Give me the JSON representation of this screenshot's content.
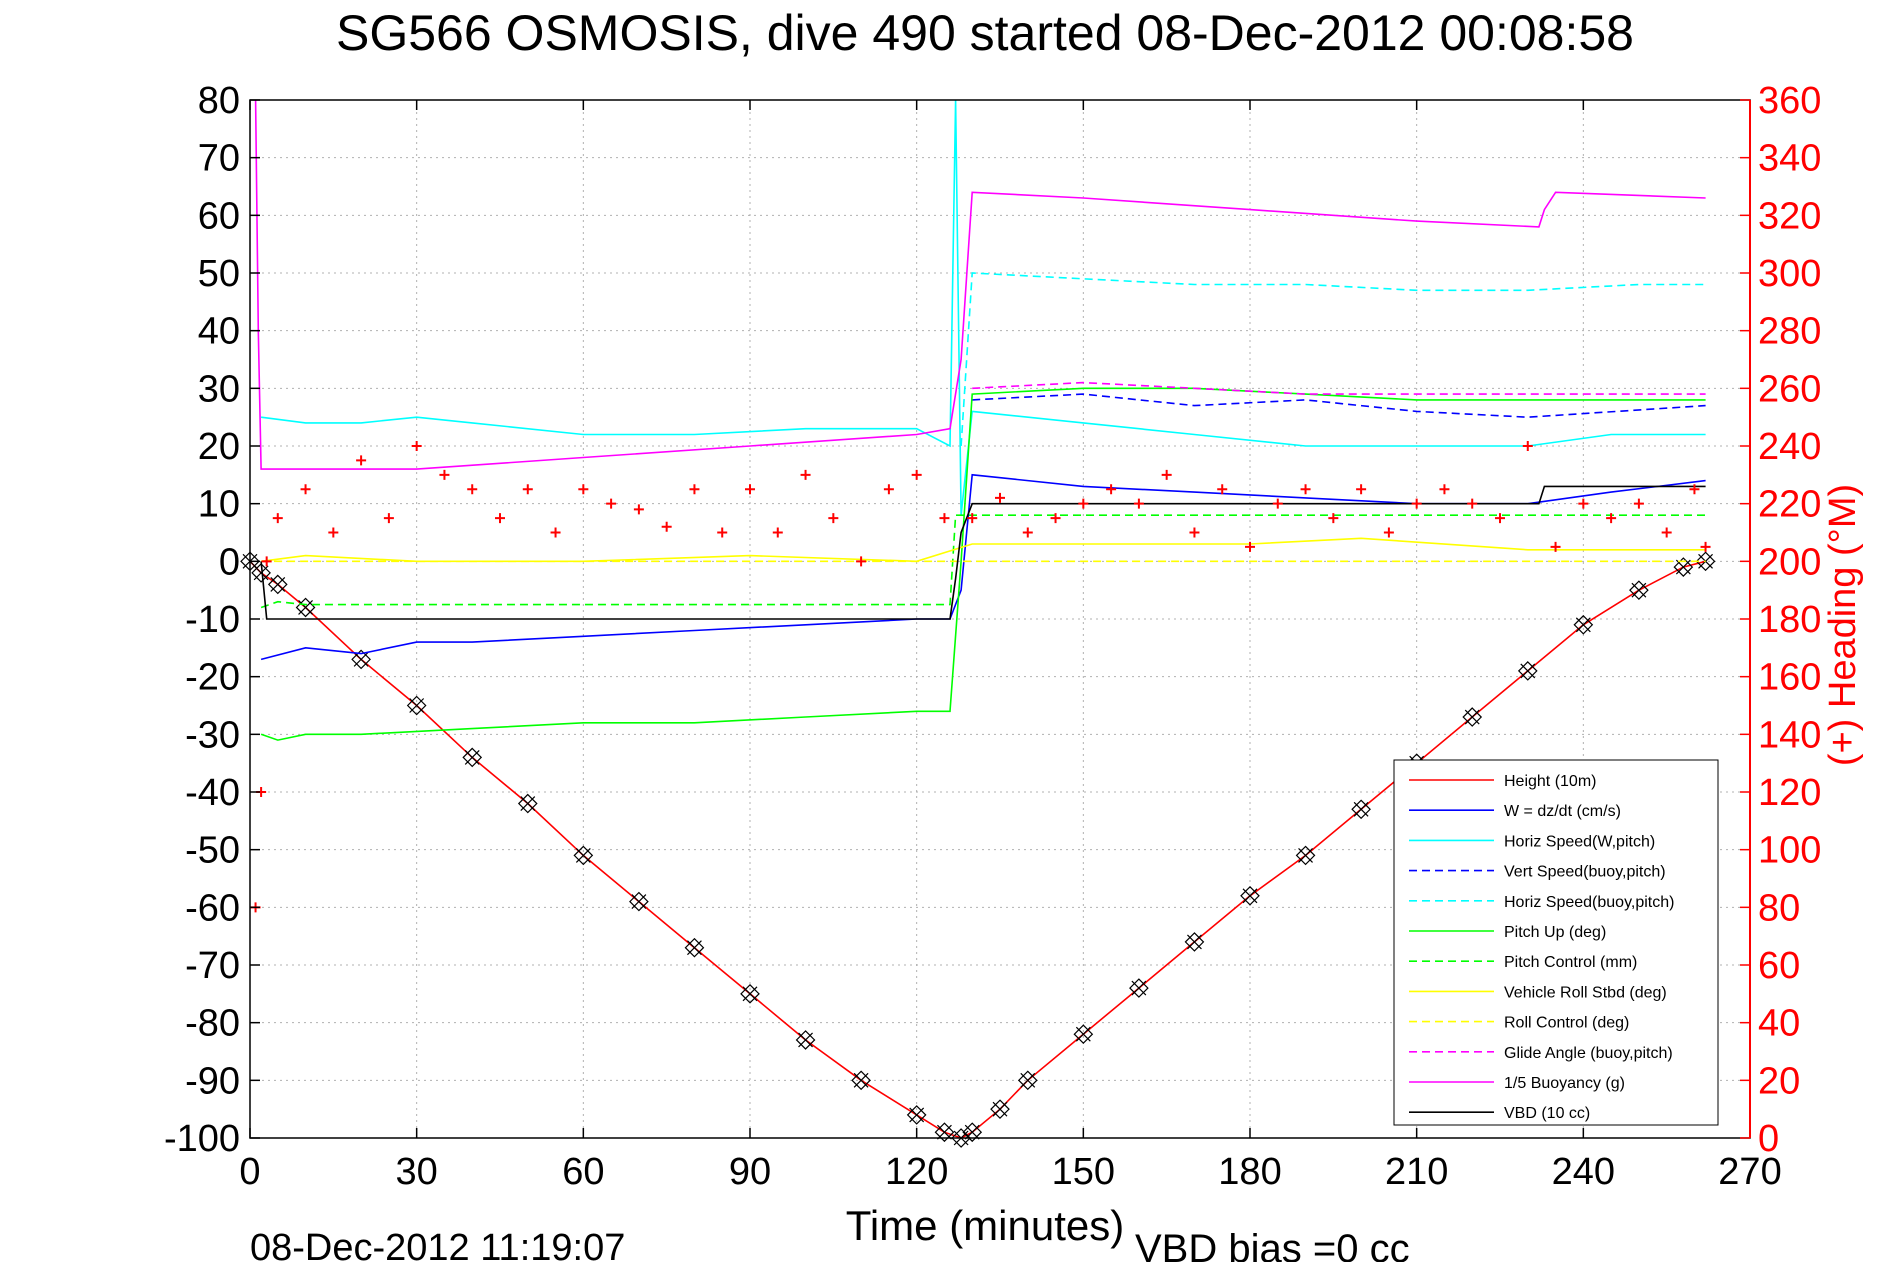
{
  "chart_data": {
    "type": "line",
    "title": "SG566 OSMOSIS, dive 490 started 08-Dec-2012 00:08:58",
    "xlabel": "Time (minutes)",
    "ylabel": "",
    "y2label": "(+) Heading (°M)",
    "footer_left": "08-Dec-2012 11:19:07",
    "footer_right": "VBD bias =0 cc",
    "xlim": [
      0,
      270
    ],
    "ylim": [
      -100,
      80
    ],
    "y2lim": [
      0,
      360
    ],
    "grid": true,
    "legend_position": "bottom-right",
    "x_ticks": [
      "0",
      "30",
      "60",
      "90",
      "120",
      "150",
      "180",
      "210",
      "240",
      "270"
    ],
    "y_ticks": [
      "80",
      "70",
      "60",
      "50",
      "40",
      "30",
      "20",
      "10",
      "0",
      "-10",
      "-20",
      "-30",
      "-40",
      "-50",
      "-60",
      "-70",
      "-80",
      "-90",
      "-100"
    ],
    "y2_ticks": [
      "360",
      "340",
      "320",
      "300",
      "280",
      "260",
      "240",
      "220",
      "200",
      "180",
      "160",
      "140",
      "120",
      "100",
      "80",
      "60",
      "40",
      "20",
      "0"
    ],
    "series": [
      {
        "name": "Height (10m)",
        "color": "#ff0000",
        "style": "solid",
        "x": [
          0,
          2,
          5,
          10,
          20,
          30,
          40,
          50,
          60,
          70,
          80,
          90,
          100,
          110,
          120,
          125,
          128,
          130,
          135,
          140,
          150,
          160,
          170,
          180,
          190,
          200,
          210,
          220,
          230,
          240,
          250,
          258,
          262
        ],
        "y": [
          0,
          -2,
          -4,
          -8,
          -17,
          -25,
          -34,
          -42,
          -51,
          -59,
          -67,
          -75,
          -83,
          -90,
          -96,
          -99,
          -100,
          -99,
          -95,
          -90,
          -82,
          -74,
          -66,
          -58,
          -51,
          -43,
          -35,
          -27,
          -19,
          -11,
          -5,
          -1,
          0
        ]
      },
      {
        "name": "W = dz/dt (cm/s)",
        "color": "#0000ff",
        "style": "solid",
        "x": [
          2,
          10,
          20,
          30,
          40,
          60,
          80,
          100,
          120,
          126,
          128,
          130,
          150,
          170,
          190,
          210,
          230,
          245,
          262
        ],
        "y": [
          -17,
          -15,
          -16,
          -14,
          -14,
          -13,
          -12,
          -11,
          -10,
          -10,
          -5,
          15,
          13,
          12,
          11,
          10,
          10,
          12,
          14
        ]
      },
      {
        "name": "Horiz Speed(W,pitch)",
        "color": "#00ffff",
        "style": "solid",
        "x": [
          2,
          10,
          20,
          30,
          40,
          60,
          80,
          100,
          120,
          126,
          127,
          128,
          130,
          150,
          170,
          190,
          210,
          230,
          245,
          262
        ],
        "y": [
          25,
          24,
          24,
          25,
          24,
          22,
          22,
          23,
          23,
          20,
          80,
          8,
          26,
          24,
          22,
          20,
          20,
          20,
          22,
          22
        ]
      },
      {
        "name": "Vert Speed(buoy,pitch)",
        "color": "#0000ff",
        "style": "dashed",
        "x": [
          130,
          150,
          170,
          190,
          210,
          230,
          262
        ],
        "y": [
          28,
          29,
          27,
          28,
          26,
          25,
          27
        ]
      },
      {
        "name": "Horiz Speed(buoy,pitch)",
        "color": "#00ffff",
        "style": "dashed",
        "x": [
          128,
          130,
          150,
          170,
          190,
          210,
          230,
          250,
          262
        ],
        "y": [
          20,
          50,
          49,
          48,
          48,
          47,
          47,
          48,
          48
        ]
      },
      {
        "name": "Pitch Up (deg)",
        "color": "#00ff00",
        "style": "solid",
        "x": [
          2,
          5,
          10,
          20,
          40,
          60,
          80,
          100,
          120,
          126,
          128,
          130,
          150,
          170,
          190,
          210,
          230,
          262
        ],
        "y": [
          -30,
          -31,
          -30,
          -30,
          -29,
          -28,
          -28,
          -27,
          -26,
          -26,
          0,
          29,
          30,
          30,
          29,
          28,
          28,
          28
        ]
      },
      {
        "name": "Pitch Control (mm)",
        "color": "#00ff00",
        "style": "dashed",
        "x": [
          2,
          5,
          10,
          40,
          80,
          126,
          127,
          130,
          180,
          230,
          262
        ],
        "y": [
          -8,
          -7,
          -7.5,
          -7.5,
          -7.5,
          -7.5,
          8,
          8,
          8,
          8,
          8
        ]
      },
      {
        "name": "Vehicle Roll Stbd (deg)",
        "color": "#ffff00",
        "style": "solid",
        "x": [
          2,
          10,
          30,
          60,
          90,
          120,
          130,
          150,
          180,
          200,
          230,
          262
        ],
        "y": [
          0,
          1,
          0,
          0,
          1,
          0,
          3,
          3,
          3,
          4,
          2,
          2
        ]
      },
      {
        "name": "Roll Control (deg)",
        "color": "#ffff00",
        "style": "dashed",
        "x": [
          2,
          30,
          60,
          90,
          120,
          130,
          180,
          262
        ],
        "y": [
          0,
          0,
          0,
          0,
          0,
          0,
          0,
          0
        ]
      },
      {
        "name": "Glide Angle (buoy,pitch)",
        "color": "#ff00ff",
        "style": "dashed",
        "x": [
          130,
          150,
          170,
          190,
          210,
          230,
          262
        ],
        "y": [
          30,
          31,
          30,
          29,
          29,
          29,
          29
        ]
      },
      {
        "name": "1/5 Buoyancy (g)",
        "color": "#ff00ff",
        "style": "solid",
        "x": [
          1,
          1.5,
          2,
          30,
          60,
          90,
          120,
          126,
          128,
          130,
          150,
          180,
          210,
          232,
          233,
          235,
          262
        ],
        "y": [
          80,
          40,
          16,
          16,
          18,
          20,
          22,
          23,
          35,
          64,
          63,
          61,
          59,
          58,
          61,
          64,
          63
        ]
      },
      {
        "name": "VBD (10 cc)",
        "color": "#000000",
        "style": "solid",
        "x": [
          2,
          3,
          126,
          127,
          128,
          130,
          180,
          232,
          233,
          262
        ],
        "y": [
          0,
          -10,
          -10,
          -3,
          5,
          10,
          10,
          10,
          13,
          13
        ]
      },
      {
        "name": "Heading",
        "color": "#ff0000",
        "style": "markers",
        "axis": "right",
        "x": [
          1,
          2,
          3,
          5,
          10,
          15,
          20,
          25,
          30,
          35,
          40,
          45,
          50,
          55,
          60,
          65,
          70,
          75,
          80,
          85,
          90,
          95,
          100,
          105,
          110,
          115,
          120,
          125,
          130,
          135,
          140,
          145,
          150,
          155,
          160,
          165,
          170,
          175,
          180,
          185,
          190,
          195,
          200,
          205,
          210,
          215,
          220,
          225,
          230,
          235,
          240,
          245,
          250,
          255,
          260,
          262
        ],
        "y": [
          80,
          120,
          200,
          215,
          225,
          210,
          235,
          215,
          240,
          230,
          225,
          215,
          225,
          210,
          225,
          220,
          218,
          212,
          225,
          210,
          225,
          210,
          230,
          215,
          200,
          225,
          230,
          215,
          215,
          222,
          210,
          215,
          220,
          225,
          220,
          230,
          210,
          225,
          205,
          220,
          225,
          215,
          225,
          210,
          220,
          225,
          220,
          215,
          240,
          205,
          220,
          215,
          220,
          210,
          225,
          205
        ]
      }
    ],
    "legend_entries": [
      "Height (10m)",
      "W = dz/dt (cm/s)",
      "Horiz Speed(W,pitch)",
      "Vert Speed(buoy,pitch)",
      "Horiz Speed(buoy,pitch)",
      "Pitch Up (deg)",
      "Pitch Control (mm)",
      "Vehicle Roll Stbd (deg)",
      "Roll Control (deg)",
      "Glide Angle (buoy,pitch)",
      "1/5 Buoyancy (g)",
      "VBD (10 cc)"
    ]
  }
}
